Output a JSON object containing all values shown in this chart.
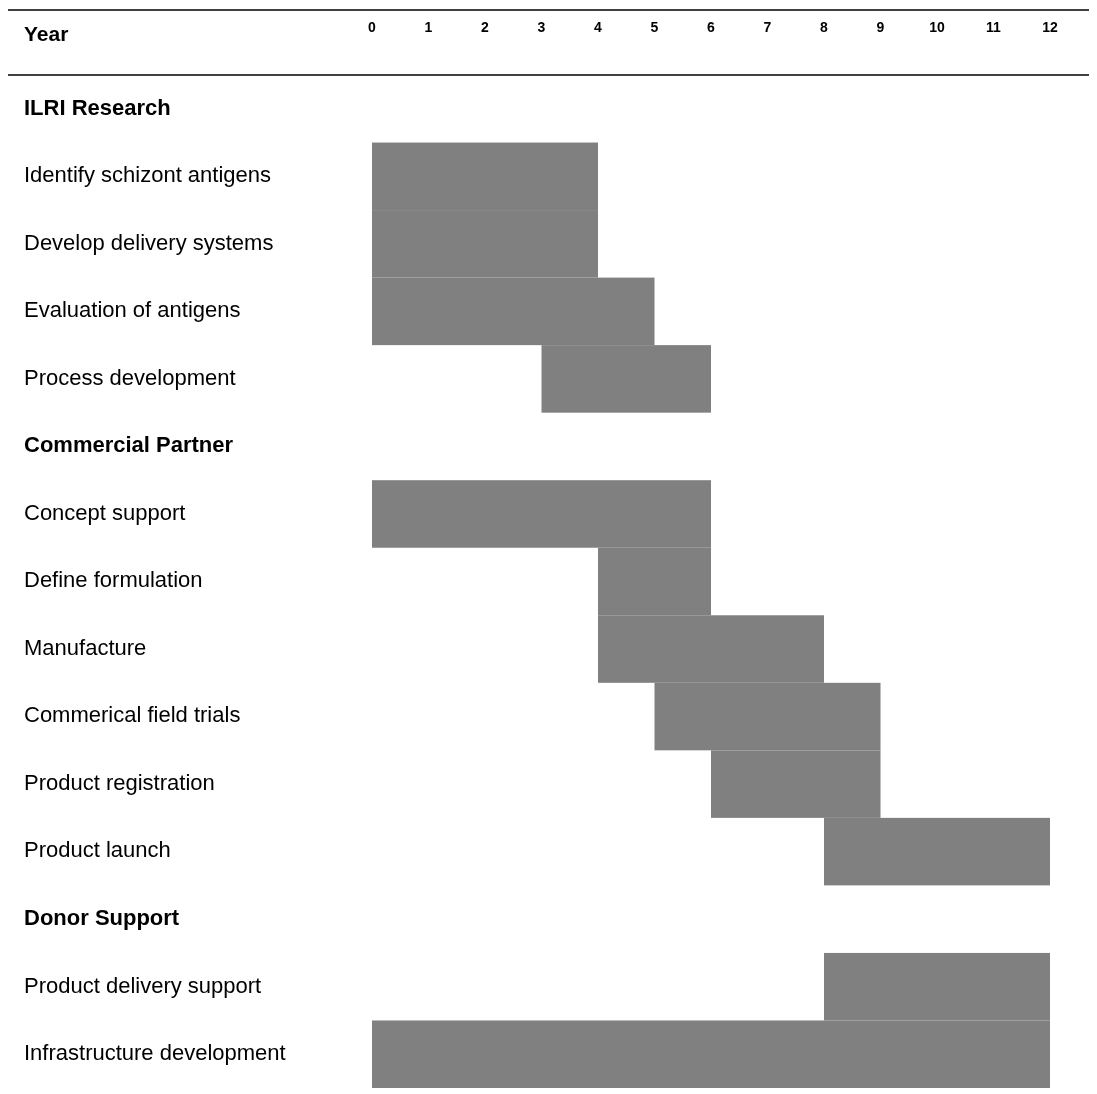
{
  "chart_data": {
    "type": "bar",
    "orientation": "horizontal",
    "xlabel": "Year",
    "categories": [
      "ILRI Research",
      "Identify schizont antigens",
      "Develop delivery systems",
      "Evaluation of antigens",
      "Process development",
      "Commercial Partner",
      "Concept support",
      "Define formulation",
      "Manufacture",
      "Commerical field trials",
      "Product registration",
      "Product launch",
      "Donor Support",
      "Product delivery support",
      "Infrastructure development"
    ],
    "base": [
      null,
      0,
      0,
      0,
      3,
      null,
      0,
      4,
      4,
      5,
      6,
      8,
      null,
      8,
      0
    ],
    "values": [
      null,
      4,
      4,
      5,
      3,
      null,
      6,
      2,
      4,
      4,
      3,
      4,
      null,
      4,
      12
    ],
    "color": "#808080",
    "xlim": [
      0,
      12
    ],
    "xticks": [
      0,
      1,
      2,
      3,
      4,
      5,
      6,
      7,
      8,
      9,
      10,
      11,
      12
    ],
    "grid": false
  }
}
